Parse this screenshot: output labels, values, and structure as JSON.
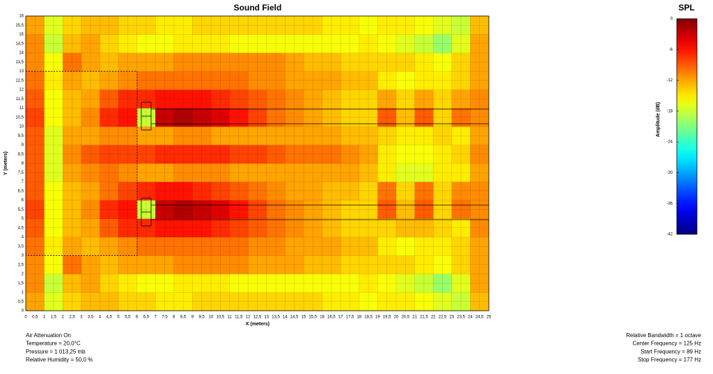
{
  "chart_data": {
    "type": "heatmap",
    "title": "Sound Field",
    "x_label": "X (meters)",
    "y_label": "Y (meters)",
    "xlim": [
      0,
      25
    ],
    "ylim": [
      0,
      16
    ],
    "grid": true,
    "colormap": "jet",
    "xticks": [
      0,
      {
        "value": 0.5,
        "label": "0,5"
      },
      1,
      {
        "value": 1.5,
        "label": "1,5"
      },
      2,
      {
        "value": 2.5,
        "label": "2,5"
      },
      3,
      {
        "value": 3.5,
        "label": "3,5"
      },
      4,
      {
        "value": 4.5,
        "label": "4,5"
      },
      5,
      {
        "value": 5.5,
        "label": "5,5"
      },
      6,
      {
        "value": 6.5,
        "label": "6,5"
      },
      7,
      {
        "value": 7.5,
        "label": "7,5"
      },
      8,
      {
        "value": 8.5,
        "label": "8,5"
      },
      9,
      {
        "value": 9.5,
        "label": "9,5"
      },
      10,
      {
        "value": 10.5,
        "label": "10,5"
      },
      11,
      {
        "value": 11.5,
        "label": "11,5"
      },
      12,
      {
        "value": 12.5,
        "label": "12,5"
      },
      13,
      {
        "value": 13.5,
        "label": "13,5"
      },
      14,
      {
        "value": 14.5,
        "label": "14,5"
      },
      15,
      {
        "value": 15.5,
        "label": "15,5"
      },
      16,
      {
        "value": 16.5,
        "label": "16,5"
      },
      17,
      {
        "value": 17.5,
        "label": "17,5"
      },
      18,
      {
        "value": 18.5,
        "label": "18,5"
      },
      19,
      {
        "value": 19.5,
        "label": "19,5"
      },
      20,
      {
        "value": 20.5,
        "label": "20,5"
      },
      21,
      {
        "value": 21.5,
        "label": "21,5"
      },
      22,
      {
        "value": 22.5,
        "label": "22,5"
      },
      23,
      {
        "value": 23.5,
        "label": "23,5"
      },
      24,
      {
        "value": 24.5,
        "label": "24,5"
      },
      25
    ],
    "yticks": [
      0,
      {
        "value": 0.5,
        "label": "0,5"
      },
      1,
      {
        "value": 1.5,
        "label": "1,5"
      },
      2,
      {
        "value": 2.5,
        "label": "2,5"
      },
      3,
      {
        "value": 3.5,
        "label": "3,5"
      },
      4,
      {
        "value": 4.5,
        "label": "4,5"
      },
      5,
      {
        "value": 5.5,
        "label": "5,5"
      },
      6,
      {
        "value": 6.5,
        "label": "6,5"
      },
      7,
      {
        "value": 7.5,
        "label": "7,5"
      },
      8,
      {
        "value": 8.5,
        "label": "8,5"
      },
      9,
      {
        "value": 9.5,
        "label": "9,5"
      },
      10,
      {
        "value": 10.5,
        "label": "10,5"
      },
      11,
      {
        "value": 11.5,
        "label": "11,5"
      },
      12,
      {
        "value": 12.5,
        "label": "12,5"
      },
      13,
      {
        "value": 13.5,
        "label": "13,5"
      },
      14,
      {
        "value": 14.5,
        "label": "14,5"
      },
      15,
      {
        "value": 15.5,
        "label": "15,5"
      },
      16
    ],
    "x": [
      0.5,
      1.5,
      2.5,
      3.5,
      4.5,
      5.5,
      6.5,
      7.5,
      8.5,
      9.5,
      10.5,
      11.5,
      12.5,
      13.5,
      14.5,
      15.5,
      16.5,
      17.5,
      18.5,
      19.5,
      20.5,
      21.5,
      22.5,
      23.5,
      24.5
    ],
    "y": [
      0.5,
      1.5,
      2.5,
      3.5,
      4.5,
      5.5,
      6.5,
      7.5,
      8.5,
      9.5,
      10.5,
      11.5,
      12.5,
      13.5,
      14.5,
      15.5
    ],
    "z": [
      [
        -12,
        -17,
        -14,
        -13,
        -13,
        -14,
        -14,
        -15,
        -15,
        -14,
        -14,
        -14,
        -14,
        -14,
        -14,
        -14,
        -15,
        -15,
        -16,
        -15,
        -15,
        -16,
        -17,
        -18,
        -13
      ],
      [
        -11,
        -18,
        -13,
        -12,
        -14,
        -15,
        -16,
        -16,
        -15,
        -15,
        -15,
        -16,
        -16,
        -16,
        -16,
        -16,
        -16,
        -16,
        -15,
        -16,
        -17,
        -18,
        -20,
        -17,
        -12
      ],
      [
        -11,
        -16,
        -10,
        -12,
        -13,
        -12,
        -12,
        -12,
        -11,
        -11,
        -11,
        -11,
        -12,
        -12,
        -12,
        -13,
        -13,
        -14,
        -14,
        -14,
        -14,
        -15,
        -16,
        -14,
        -12
      ],
      [
        -10,
        -15,
        -12,
        -13,
        -12,
        -11,
        -10,
        -10,
        -10,
        -10,
        -10,
        -10,
        -11,
        -11,
        -12,
        -12,
        -12,
        -13,
        -13,
        -15,
        -16,
        -15,
        -15,
        -14,
        -12
      ],
      [
        -9,
        -16,
        -13,
        -12,
        -9,
        -7,
        -7,
        -6,
        -6,
        -6,
        -7,
        -8,
        -9,
        -10,
        -11,
        -12,
        -13,
        -14,
        -14,
        -14,
        -13,
        -13,
        -14,
        -15,
        -11
      ],
      [
        -8,
        -16,
        -13,
        -11,
        -7,
        -6,
        -18,
        -3,
        -2,
        -3,
        -4,
        -6,
        -8,
        -10,
        -11,
        -12,
        -13,
        -14,
        -14,
        -9,
        -13,
        -9,
        -14,
        -10,
        -11
      ],
      [
        -9,
        -16,
        -13,
        -12,
        -10,
        -8,
        -7,
        -6,
        -6,
        -7,
        -8,
        -9,
        -10,
        -11,
        -12,
        -12,
        -13,
        -13,
        -14,
        -10,
        -14,
        -10,
        -14,
        -11,
        -11
      ],
      [
        -9,
        -17,
        -12,
        -11,
        -10,
        -11,
        -12,
        -12,
        -11,
        -11,
        -11,
        -12,
        -12,
        -12,
        -12,
        -12,
        -12,
        -12,
        -13,
        -15,
        -17,
        -17,
        -15,
        -15,
        -12
      ],
      [
        -9,
        -17,
        -11,
        -9,
        -8,
        -8,
        -8,
        -7,
        -7,
        -7,
        -7,
        -8,
        -8,
        -9,
        -10,
        -10,
        -10,
        -11,
        -12,
        -15,
        -16,
        -16,
        -15,
        -14,
        -11
      ],
      [
        -9,
        -17,
        -12,
        -12,
        -11,
        -11,
        -12,
        -12,
        -11,
        -11,
        -12,
        -12,
        -12,
        -12,
        -12,
        -12,
        -12,
        -13,
        -13,
        -14,
        -15,
        -15,
        -14,
        -15,
        -12
      ],
      [
        -8,
        -16,
        -13,
        -11,
        -7,
        -6,
        -18,
        -3,
        -2,
        -3,
        -4,
        -6,
        -8,
        -10,
        -11,
        -12,
        -13,
        -14,
        -14,
        -9,
        -13,
        -9,
        -14,
        -10,
        -11
      ],
      [
        -9,
        -16,
        -13,
        -12,
        -9,
        -7,
        -7,
        -6,
        -6,
        -6,
        -7,
        -8,
        -9,
        -10,
        -11,
        -12,
        -13,
        -14,
        -14,
        -12,
        -14,
        -12,
        -14,
        -12,
        -11
      ],
      [
        -10,
        -15,
        -12,
        -13,
        -12,
        -11,
        -10,
        -10,
        -10,
        -10,
        -10,
        -10,
        -11,
        -11,
        -12,
        -12,
        -12,
        -13,
        -13,
        -15,
        -16,
        -15,
        -15,
        -14,
        -12
      ],
      [
        -11,
        -16,
        -10,
        -12,
        -13,
        -12,
        -12,
        -12,
        -11,
        -11,
        -11,
        -11,
        -11,
        -11,
        -12,
        -13,
        -13,
        -14,
        -14,
        -14,
        -14,
        -15,
        -16,
        -14,
        -12
      ],
      [
        -11,
        -18,
        -13,
        -12,
        -14,
        -15,
        -16,
        -16,
        -15,
        -15,
        -15,
        -16,
        -16,
        -16,
        -16,
        -16,
        -16,
        -16,
        -15,
        -16,
        -17,
        -18,
        -20,
        -17,
        -12
      ],
      [
        -12,
        -17,
        -14,
        -13,
        -13,
        -14,
        -14,
        -15,
        -15,
        -14,
        -14,
        -14,
        -14,
        -14,
        -14,
        -14,
        -15,
        -15,
        -16,
        -15,
        -15,
        -16,
        -17,
        -18,
        -13
      ]
    ],
    "colorbar": {
      "title": "SPL",
      "label": "Amplitude (dB)",
      "lim": [
        -42,
        0
      ],
      "ticks": [
        0,
        -6,
        -12,
        -18,
        -24,
        -30,
        -36,
        -42
      ]
    },
    "annotations_left": [
      "Air Attenuation On",
      "Temperature = 20,0°C",
      "Pressure = 1 013,25  mb",
      "Relative Humidity = 50,0 %"
    ],
    "annotations_right": [
      "Relative Bandwidth = 1 octave",
      "Center Frequency = 125 Hz",
      "Start Frequency = 89 Hz",
      "Stop Frequency = 177 Hz"
    ]
  }
}
